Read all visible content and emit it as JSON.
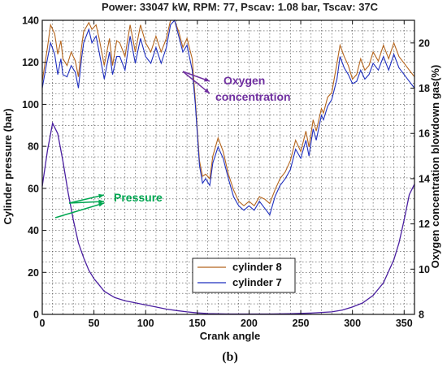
{
  "chart_data": {
    "type": "line",
    "title": "Power: 33047 kW, RPM: 77, Pscav: 1.08 bar, Tscav: 37C",
    "xlabel": "Crank angle",
    "ylabel_left": "Cylinder pressure (bar)",
    "ylabel_right": "Oxygen concentration blowdown gas(%)",
    "sublabel": "(b)",
    "xlim": [
      0,
      360
    ],
    "ylim_left": [
      0,
      140
    ],
    "ylim_right": [
      8,
      21
    ],
    "x_ticks": [
      "0",
      "50",
      "100",
      "150",
      "200",
      "250",
      "300",
      "350"
    ],
    "y_ticks_left": [
      "0",
      "20",
      "40",
      "60",
      "80",
      "100",
      "120",
      "140"
    ],
    "y_ticks_right": [
      "8",
      "10",
      "12",
      "14",
      "16",
      "18",
      "20"
    ],
    "grid": true,
    "legend_position": "bottom-right",
    "annotations": [
      {
        "text": "Oxygen",
        "color": "#7030a0"
      },
      {
        "text": "concentration",
        "color": "#7030a0"
      },
      {
        "text": "Pressure",
        "color": "#00a651"
      }
    ],
    "pressure": {
      "axis": "left",
      "x": [
        0,
        5,
        10,
        15,
        20,
        25,
        30,
        35,
        40,
        45,
        50,
        55,
        60,
        70,
        80,
        90,
        100,
        110,
        120,
        130,
        140,
        150,
        160,
        180,
        200,
        220,
        240,
        260,
        280,
        290,
        300,
        310,
        320,
        330,
        340,
        345,
        350,
        355,
        360
      ],
      "values": [
        61,
        78,
        91,
        86,
        73,
        58,
        45,
        34,
        27,
        21,
        17,
        14,
        11,
        8,
        6.5,
        5.5,
        4.5,
        3.5,
        2.5,
        1.8,
        1.2,
        0.7,
        0.4,
        0.2,
        0.2,
        0.2,
        0.3,
        0.6,
        1.2,
        2,
        3.5,
        5.5,
        9,
        15,
        26,
        34,
        45,
        57,
        62
      ]
    },
    "series": [
      {
        "name": "cylinder 8",
        "axis": "right",
        "color": "#b5651d",
        "x": [
          0,
          5,
          8,
          12,
          15,
          18,
          20,
          24,
          28,
          32,
          35,
          38,
          40,
          45,
          48,
          52,
          55,
          60,
          65,
          68,
          72,
          75,
          80,
          85,
          90,
          95,
          100,
          105,
          110,
          115,
          120,
          124,
          128,
          132,
          136,
          140,
          145,
          148,
          152,
          155,
          158,
          162,
          165,
          170,
          175,
          180,
          185,
          190,
          195,
          200,
          205,
          210,
          215,
          220,
          225,
          230,
          235,
          240,
          245,
          250,
          255,
          258,
          262,
          265,
          270,
          272,
          276,
          280,
          285,
          288,
          292,
          296,
          300,
          304,
          308,
          312,
          316,
          320,
          325,
          330,
          335,
          340,
          345,
          350,
          355,
          360
        ],
        "values": [
          18.3,
          19.8,
          20.8,
          20.4,
          19.5,
          20.1,
          19.3,
          19.0,
          19.6,
          19.2,
          18.5,
          19.8,
          20.5,
          20.9,
          20.6,
          20.8,
          20.2,
          19.0,
          20.2,
          19.0,
          20.1,
          20.0,
          19.4,
          20.8,
          19.6,
          20.8,
          20.0,
          19.6,
          20.3,
          19.6,
          20.2,
          21.0,
          21.2,
          20.5,
          19.8,
          20.2,
          19.3,
          17.5,
          14.8,
          14.1,
          14.2,
          14.0,
          15.0,
          15.8,
          15.2,
          14.2,
          13.5,
          13.0,
          12.8,
          13.0,
          12.8,
          13.2,
          13.1,
          12.9,
          13.5,
          14.0,
          14.3,
          14.8,
          15.7,
          15.2,
          16.1,
          15.4,
          16.6,
          16.1,
          17.1,
          16.9,
          17.6,
          17.8,
          19.1,
          19.9,
          19.4,
          19.0,
          18.4,
          18.6,
          19.3,
          18.8,
          19.0,
          19.6,
          19.2,
          19.9,
          19.3,
          20.0,
          19.4,
          19.1,
          18.8,
          18.5
        ]
      },
      {
        "name": "cylinder 7",
        "axis": "right",
        "color": "#1f2fbf",
        "x": [
          0,
          5,
          8,
          12,
          15,
          18,
          20,
          24,
          28,
          32,
          35,
          38,
          40,
          45,
          48,
          52,
          55,
          60,
          65,
          68,
          72,
          75,
          80,
          85,
          90,
          95,
          100,
          105,
          110,
          115,
          120,
          124,
          128,
          132,
          136,
          140,
          145,
          148,
          152,
          155,
          158,
          162,
          165,
          170,
          175,
          180,
          185,
          190,
          195,
          200,
          205,
          210,
          215,
          220,
          225,
          230,
          235,
          240,
          245,
          250,
          255,
          258,
          262,
          265,
          270,
          272,
          276,
          280,
          285,
          288,
          292,
          296,
          300,
          304,
          308,
          312,
          316,
          320,
          325,
          330,
          335,
          340,
          345,
          350,
          355,
          360
        ],
        "values": [
          18.0,
          19.3,
          20.0,
          19.5,
          18.6,
          19.3,
          18.6,
          18.5,
          19.0,
          18.7,
          18.0,
          19.3,
          20.0,
          20.6,
          20.0,
          20.3,
          19.6,
          18.4,
          19.6,
          18.6,
          19.4,
          19.4,
          18.8,
          20.3,
          19.1,
          20.2,
          19.4,
          19.1,
          19.8,
          19.1,
          19.8,
          20.8,
          21.1,
          20.3,
          19.6,
          19.9,
          18.8,
          17.3,
          14.6,
          13.8,
          14.0,
          13.7,
          14.7,
          15.4,
          14.9,
          14.0,
          13.2,
          12.8,
          12.6,
          12.8,
          12.6,
          13.0,
          12.7,
          12.4,
          13.2,
          13.7,
          14.0,
          14.4,
          15.3,
          14.9,
          15.7,
          15.0,
          16.2,
          15.7,
          16.8,
          16.6,
          17.2,
          17.5,
          18.4,
          19.4,
          18.9,
          18.6,
          18.2,
          18.3,
          18.8,
          18.4,
          18.6,
          19.1,
          18.8,
          19.4,
          18.8,
          19.5,
          18.9,
          18.6,
          18.3,
          18.0
        ]
      }
    ]
  }
}
